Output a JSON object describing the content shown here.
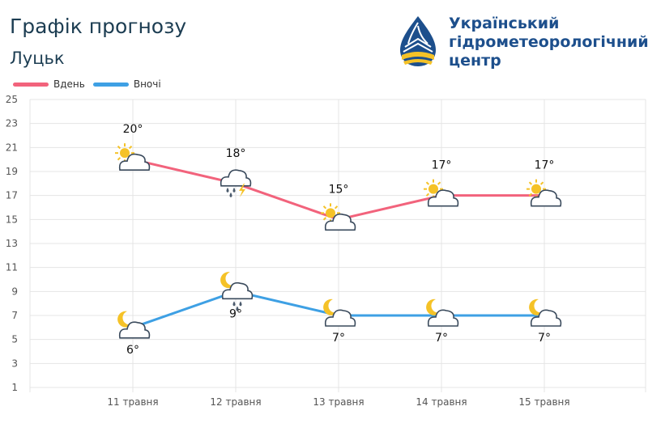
{
  "header": {
    "title": "Графік прогнозу",
    "city": "Луцьк"
  },
  "logo": {
    "line1": "Український",
    "line2": "гідрометеорологічний",
    "line3": "центр"
  },
  "colors": {
    "day": "#f2637c",
    "night": "#3ea0e4",
    "grid": "#e4e4e4"
  },
  "chart_data": {
    "type": "line",
    "categories": [
      "11 травня",
      "12 травня",
      "13 травня",
      "14 травня",
      "15 травня"
    ],
    "series": [
      {
        "name": "Вдень",
        "values": [
          20,
          18,
          15,
          17,
          17
        ],
        "labels": [
          "20°",
          "18°",
          "15°",
          "17°",
          "17°"
        ],
        "icons": [
          "sun-cloud-icon",
          "thunder-rain-cloud-icon",
          "sun-cloud-icon",
          "sun-cloud-icon",
          "sun-cloud-icon"
        ]
      },
      {
        "name": "Вночі",
        "values": [
          6,
          9,
          7,
          7,
          7
        ],
        "labels": [
          "6°",
          "9°",
          "7°",
          "7°",
          "7°"
        ],
        "icons": [
          "moon-cloud-icon",
          "moon-rain-cloud-icon",
          "moon-cloud-icon",
          "moon-cloud-icon",
          "moon-cloud-icon"
        ]
      }
    ],
    "yticks": [
      "1",
      "3",
      "5",
      "7",
      "9",
      "11",
      "13",
      "15",
      "17",
      "19",
      "21",
      "23",
      "25"
    ],
    "ylim": [
      1,
      25
    ],
    "grid": true,
    "legend": "top-left"
  }
}
